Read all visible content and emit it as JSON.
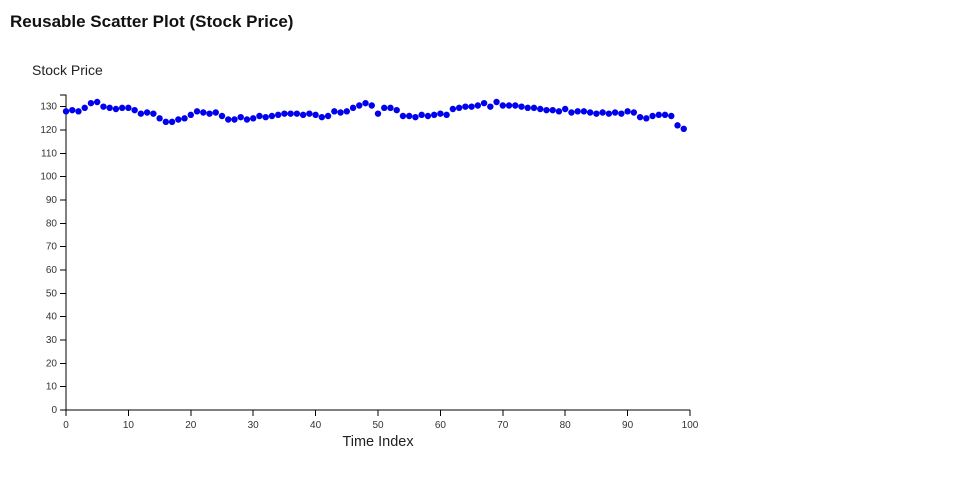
{
  "page": {
    "title": "Reusable Scatter Plot (Stock Price)"
  },
  "chart_data": {
    "type": "scatter",
    "title": "Reusable Scatter Plot (Stock Price)",
    "xlabel": "Time Index",
    "ylabel": "Stock Price",
    "xlim": [
      0,
      100
    ],
    "ylim": [
      0,
      135
    ],
    "xticks": [
      0,
      10,
      20,
      30,
      40,
      50,
      60,
      70,
      80,
      90,
      100
    ],
    "yticks": [
      0,
      10,
      20,
      30,
      40,
      50,
      60,
      70,
      80,
      90,
      100,
      110,
      120,
      130
    ],
    "grid": false,
    "point_color": "#0000ee",
    "axis_color": "#000000",
    "x": [
      0,
      1,
      2,
      3,
      4,
      5,
      6,
      7,
      8,
      9,
      10,
      11,
      12,
      13,
      14,
      15,
      16,
      17,
      18,
      19,
      20,
      21,
      22,
      23,
      24,
      25,
      26,
      27,
      28,
      29,
      30,
      31,
      32,
      33,
      34,
      35,
      36,
      37,
      38,
      39,
      40,
      41,
      42,
      43,
      44,
      45,
      46,
      47,
      48,
      49,
      50,
      51,
      52,
      53,
      54,
      55,
      56,
      57,
      58,
      59,
      60,
      61,
      62,
      63,
      64,
      65,
      66,
      67,
      68,
      69,
      70,
      71,
      72,
      73,
      74,
      75,
      76,
      77,
      78,
      79,
      80,
      81,
      82,
      83,
      84,
      85,
      86,
      87,
      88,
      89,
      90,
      91,
      92,
      93,
      94,
      95,
      96,
      97,
      98,
      99
    ],
    "values": [
      128,
      128.5,
      128,
      129.5,
      131.5,
      132,
      130,
      129.5,
      129,
      129.5,
      129.5,
      128.5,
      127,
      127.5,
      127,
      125,
      123.5,
      123.5,
      124.5,
      125,
      126.5,
      128,
      127.5,
      127,
      127.5,
      126,
      124.5,
      124.5,
      125.5,
      124.5,
      125,
      126,
      125.5,
      126,
      126.5,
      127,
      127,
      127,
      126.5,
      127,
      126.5,
      125.5,
      126,
      128,
      127.5,
      128,
      129.5,
      130.5,
      131.5,
      130.5,
      127,
      129.5,
      129.5,
      128.5,
      126,
      126,
      125.5,
      126.5,
      126,
      126.5,
      127,
      126.5,
      129,
      129.5,
      130,
      130,
      130.5,
      131.5,
      130,
      132,
      130.5,
      130.5,
      130.5,
      130,
      129.5,
      129.5,
      129,
      128.5,
      128.5,
      128,
      129,
      127.5,
      128,
      128,
      127.5,
      127,
      127.5,
      127,
      127.5,
      127,
      128,
      127.5,
      125.5,
      125,
      126,
      126.5,
      126.5,
      126,
      122,
      120.5
    ]
  }
}
